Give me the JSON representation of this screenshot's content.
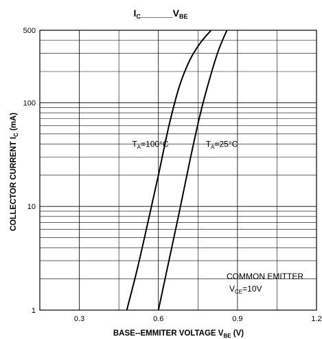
{
  "chart_data": {
    "type": "line",
    "title": {
      "main": "I",
      "main_sub": "C",
      "sep": "______",
      "second": "V",
      "second_sub": "BE"
    },
    "xlabel": {
      "main": "BASE--EMMITER VOLTAGE V",
      "sub": "BE",
      "unit": " (V)"
    },
    "ylabel": {
      "main": "COLLECTOR CURRENT I",
      "sub": "C",
      "unit": " (mA)"
    },
    "xlim": [
      0.15,
      1.2
    ],
    "ylim": [
      1,
      500
    ],
    "yscale": "log",
    "x_ticks": [
      "0.3",
      "0.6",
      "0.9",
      "1.2"
    ],
    "x_tick_values": [
      0.3,
      0.6,
      0.9,
      1.2
    ],
    "y_ticks": [
      "1",
      "10",
      "100",
      "500"
    ],
    "y_tick_values": [
      1,
      10,
      100,
      500
    ],
    "grid": true,
    "series": [
      {
        "name": "T_A=100°C",
        "label": {
          "main": "T",
          "sub": "A",
          "rest": "=100°C"
        },
        "label_at": [
          0.5,
          40
        ],
        "x": [
          0.48,
          0.52,
          0.56,
          0.6,
          0.64,
          0.68,
          0.72,
          0.76,
          0.8
        ],
        "y": [
          1,
          2.5,
          7,
          20,
          60,
          145,
          260,
          380,
          500
        ]
      },
      {
        "name": "T_A=25°C",
        "label": {
          "main": "T",
          "sub": "A",
          "rest": "=25°C"
        },
        "label_at": [
          0.78,
          40
        ],
        "x": [
          0.6,
          0.64,
          0.68,
          0.72,
          0.76,
          0.8,
          0.83,
          0.86
        ],
        "y": [
          1,
          3,
          9,
          28,
          80,
          190,
          330,
          500
        ]
      }
    ],
    "annotations": {
      "line1": "COMMON EMITTER",
      "line2": {
        "main": "V",
        "sub": "CE",
        "rest": "=10V"
      }
    }
  }
}
